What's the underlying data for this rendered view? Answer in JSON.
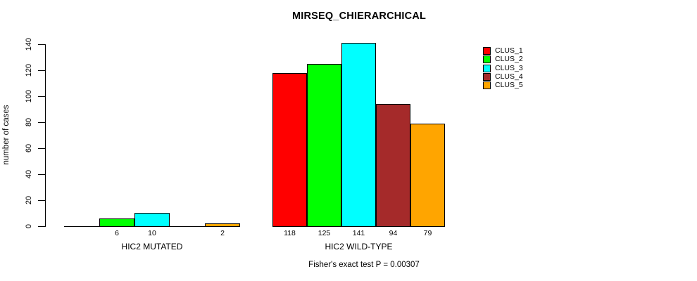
{
  "window": {
    "background": "#FFFFFF"
  },
  "chart_data": {
    "type": "bar",
    "title": "MIRSEQ_CHIERARCHICAL",
    "ylabel": "number of cases",
    "xlabel": "",
    "ylim": [
      0,
      140
    ],
    "yticks": [
      0,
      20,
      40,
      60,
      80,
      100,
      120,
      140
    ],
    "grid": false,
    "legend_position": "right",
    "categories": [
      "HIC2 MUTATED",
      "HIC2 WILD-TYPE"
    ],
    "series": [
      {
        "name": "CLUS_1",
        "color": "#FF0000",
        "values": [
          0,
          118
        ]
      },
      {
        "name": "CLUS_2",
        "color": "#00FF00",
        "values": [
          6,
          125
        ]
      },
      {
        "name": "CLUS_3",
        "color": "#00FFFF",
        "values": [
          10,
          141
        ]
      },
      {
        "name": "CLUS_4",
        "color": "#A52A2A",
        "values": [
          0,
          94
        ]
      },
      {
        "name": "CLUS_5",
        "color": "#FFA500",
        "values": [
          2,
          79
        ]
      }
    ],
    "bar_labels": [
      [
        "",
        "6",
        "10",
        "",
        "2"
      ],
      [
        "118",
        "125",
        "141",
        "94",
        "79"
      ]
    ],
    "annotation": "Fisher's exact test P = 0.00307"
  }
}
